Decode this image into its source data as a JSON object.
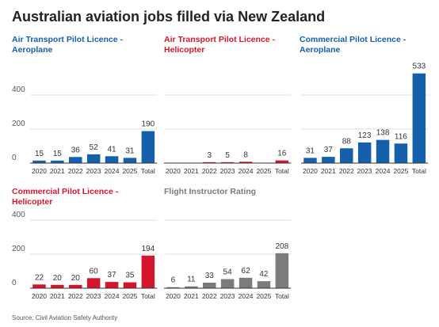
{
  "title": "Australian aviation jobs filled via New Zealand",
  "source": "Source: Civil Aviation Safety Authority",
  "colors": {
    "blue": "#1460aa",
    "red": "#d6152c",
    "grey": "#7b7b7b",
    "baseline": "#333333",
    "grid": "#dddddd",
    "label": "#333333",
    "tick": "#555555"
  },
  "y_ticks": [
    "400",
    "200",
    "0"
  ],
  "chart_data": [
    {
      "type": "bar",
      "title": "Air Transport Pilot Licence - Aeroplane",
      "color": "#1460aa",
      "categories": [
        "2020",
        "2021",
        "2022",
        "2023",
        "2024",
        "2025",
        "Total"
      ],
      "values": [
        15,
        15,
        36,
        52,
        41,
        31,
        190
      ],
      "ylim": [
        0,
        600
      ],
      "yticks": [
        0,
        200,
        400
      ]
    },
    {
      "type": "bar",
      "title": "Air Transport Pilot Licence - Helicopter",
      "color": "#d6152c",
      "categories": [
        "2020",
        "2021",
        "2022",
        "2023",
        "2024",
        "2025",
        "Total"
      ],
      "values": [
        null,
        null,
        3,
        5,
        8,
        null,
        16
      ],
      "ylim": [
        0,
        600
      ],
      "yticks": [
        0,
        200,
        400
      ]
    },
    {
      "type": "bar",
      "title": "Commercial Pilot Licence - Aeroplane",
      "color": "#1460aa",
      "categories": [
        "2020",
        "2021",
        "2022",
        "2023",
        "2024",
        "2025",
        "Total"
      ],
      "values": [
        31,
        37,
        88,
        123,
        138,
        116,
        533
      ],
      "ylim": [
        0,
        600
      ],
      "yticks": [
        0,
        200,
        400
      ]
    },
    {
      "type": "bar",
      "title": "Commercial Pilot Licence - Helicopter",
      "color": "#d6152c",
      "categories": [
        "2020",
        "2021",
        "2022",
        "2023",
        "2024",
        "2025",
        "Total"
      ],
      "values": [
        22,
        20,
        20,
        60,
        37,
        35,
        194
      ],
      "ylim": [
        0,
        600
      ],
      "yticks": [
        0,
        200,
        400
      ]
    },
    {
      "type": "bar",
      "title": "Flight Instructor Rating",
      "color": "#7b7b7b",
      "categories": [
        "2020",
        "2021",
        "2022",
        "2023",
        "2024",
        "2025",
        "Total"
      ],
      "values": [
        6,
        11,
        33,
        54,
        62,
        42,
        208
      ],
      "ylim": [
        0,
        600
      ],
      "yticks": [
        0,
        200,
        400
      ]
    }
  ]
}
